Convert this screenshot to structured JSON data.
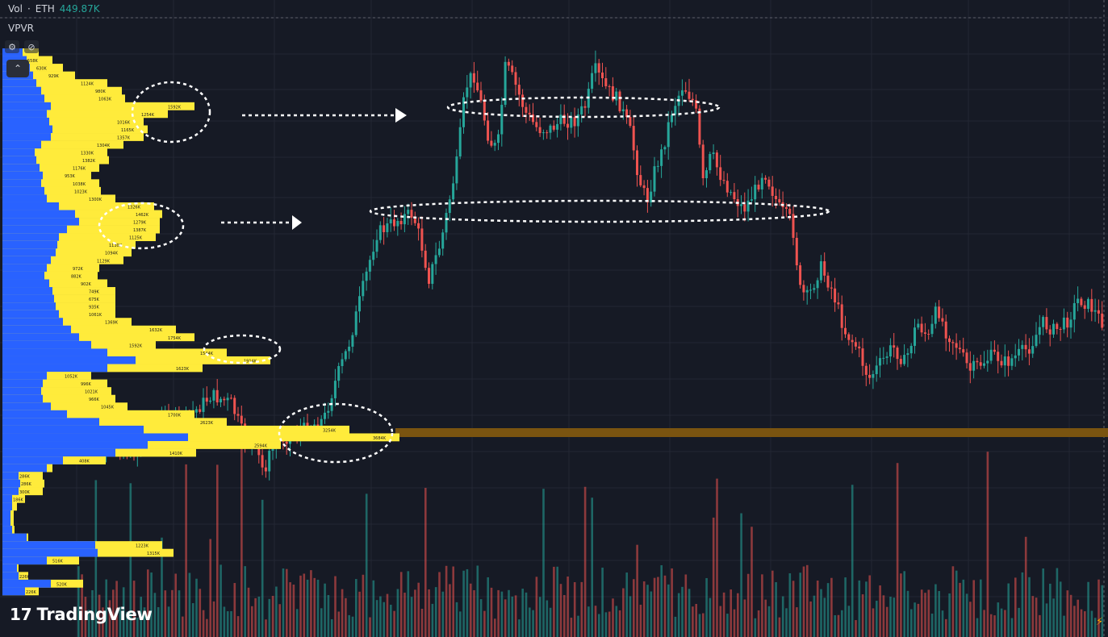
{
  "header": {
    "volume_legend": {
      "name": "Vol",
      "separator": "·",
      "symbol": "ETH",
      "value": "449.87K"
    },
    "indicator_label": "VPVR",
    "tools": {
      "settings_icon": "settings-icon",
      "visibility_icon": "eye-off-icon"
    },
    "collapse_icon": "chevron-up-icon"
  },
  "branding": {
    "logo_mark": "17",
    "logo_text": "TradingView"
  },
  "right_edge_icon": "lightning-icon",
  "colors": {
    "background": "#161a25",
    "grid": "#232734",
    "up": "#26a69a",
    "down": "#ef5350",
    "vp_buy": "#2962ff",
    "vp_sell": "#ffeb3b",
    "poc_line": "#7a5410",
    "annotation": "#ffffff"
  },
  "chart_data": {
    "type": "candlestick",
    "symbol": "ETH",
    "volume_value": "449.87K",
    "volume_profile": {
      "rows": [
        {
          "buy": 25,
          "total": 45,
          "label": ""
        },
        {
          "buy": 30,
          "total": 62,
          "label": "558K"
        },
        {
          "buy": 34,
          "total": 75,
          "label": "630K"
        },
        {
          "buy": 38,
          "total": 90,
          "label": "929K"
        },
        {
          "buy": 42,
          "total": 130,
          "label": "1124K"
        },
        {
          "buy": 48,
          "total": 148,
          "label": "980K"
        },
        {
          "buy": 52,
          "total": 152,
          "label": "1063K"
        },
        {
          "buy": 60,
          "total": 238,
          "label": "1592K"
        },
        {
          "buy": 55,
          "total": 205,
          "label": "1254K"
        },
        {
          "buy": 58,
          "total": 175,
          "label": "1016K"
        },
        {
          "buy": 62,
          "total": 180,
          "label": "1165K"
        },
        {
          "buy": 60,
          "total": 175,
          "label": "1357K"
        },
        {
          "buy": 48,
          "total": 150,
          "label": "1304K"
        },
        {
          "buy": 40,
          "total": 130,
          "label": "1330K"
        },
        {
          "buy": 42,
          "total": 132,
          "label": "1382K"
        },
        {
          "buy": 46,
          "total": 120,
          "label": "1176K"
        },
        {
          "buy": 50,
          "total": 110,
          "label": "953K"
        },
        {
          "buy": 48,
          "total": 120,
          "label": "1038K"
        },
        {
          "buy": 52,
          "total": 122,
          "label": "1023K"
        },
        {
          "buy": 55,
          "total": 140,
          "label": "1300K"
        },
        {
          "buy": 70,
          "total": 188,
          "label": "1326K"
        },
        {
          "buy": 90,
          "total": 198,
          "label": "1462K"
        },
        {
          "buy": 95,
          "total": 195,
          "label": "1279K"
        },
        {
          "buy": 80,
          "total": 195,
          "label": "1387K"
        },
        {
          "buy": 70,
          "total": 190,
          "label": "1125K"
        },
        {
          "buy": 68,
          "total": 165,
          "label": "1130K"
        },
        {
          "buy": 66,
          "total": 160,
          "label": "1094K"
        },
        {
          "buy": 60,
          "total": 150,
          "label": "1129K"
        },
        {
          "buy": 55,
          "total": 120,
          "label": "972K"
        },
        {
          "buy": 52,
          "total": 118,
          "label": "882K"
        },
        {
          "buy": 58,
          "total": 130,
          "label": "902K"
        },
        {
          "buy": 62,
          "total": 140,
          "label": "749K"
        },
        {
          "buy": 64,
          "total": 140,
          "label": "675K"
        },
        {
          "buy": 66,
          "total": 140,
          "label": "935K"
        },
        {
          "buy": 70,
          "total": 140,
          "label": "1061K"
        },
        {
          "buy": 75,
          "total": 160,
          "label": "1369K"
        },
        {
          "buy": 85,
          "total": 215,
          "label": "1632K"
        },
        {
          "buy": 95,
          "total": 238,
          "label": "1754K"
        },
        {
          "buy": 110,
          "total": 190,
          "label": "1592K"
        },
        {
          "buy": 130,
          "total": 278,
          "label": "1544K"
        },
        {
          "buy": 165,
          "total": 332,
          "label": "1914K"
        },
        {
          "buy": 130,
          "total": 248,
          "label": "1623K"
        },
        {
          "buy": 55,
          "total": 110,
          "label": "1052K"
        },
        {
          "buy": 50,
          "total": 130,
          "label": "996K"
        },
        {
          "buy": 48,
          "total": 135,
          "label": "1021K"
        },
        {
          "buy": 50,
          "total": 140,
          "label": "966K"
        },
        {
          "buy": 60,
          "total": 155,
          "label": "1045K"
        },
        {
          "buy": 80,
          "total": 238,
          "label": "1700K"
        },
        {
          "buy": 120,
          "total": 278,
          "label": "2623K"
        },
        {
          "buy": 175,
          "total": 430,
          "label": "3254K"
        },
        {
          "buy": 230,
          "total": 492,
          "label": "3684K"
        },
        {
          "buy": 180,
          "total": 345,
          "label": "2594K"
        },
        {
          "buy": 140,
          "total": 240,
          "label": "1410K"
        },
        {
          "buy": 75,
          "total": 128,
          "label": "408K"
        },
        {
          "buy": 55,
          "total": 62,
          "label": ""
        },
        {
          "buy": 20,
          "total": 50,
          "label": "286K"
        },
        {
          "buy": 22,
          "total": 52,
          "label": "286K"
        },
        {
          "buy": 20,
          "total": 50,
          "label": "300K"
        },
        {
          "buy": 12,
          "total": 28,
          "label": "186K"
        },
        {
          "buy": 12,
          "total": 18,
          "label": ""
        },
        {
          "buy": 10,
          "total": 14,
          "label": ""
        },
        {
          "buy": 10,
          "total": 14,
          "label": ""
        },
        {
          "buy": 12,
          "total": 15,
          "label": ""
        },
        {
          "buy": 30,
          "total": 32,
          "label": ""
        },
        {
          "buy": 115,
          "total": 198,
          "label": "1223K"
        },
        {
          "buy": 118,
          "total": 212,
          "label": "1315K"
        },
        {
          "buy": 55,
          "total": 95,
          "label": "516K"
        },
        {
          "buy": 18,
          "total": 20,
          "label": ""
        },
        {
          "buy": 20,
          "total": 32,
          "label": "226K"
        },
        {
          "buy": 60,
          "total": 100,
          "label": "520K"
        },
        {
          "buy": 28,
          "total": 45,
          "label": "226K"
        }
      ]
    },
    "poc_label": "3684K",
    "annotations": [
      "dashed-ellipse",
      "dashed-arrow"
    ]
  }
}
